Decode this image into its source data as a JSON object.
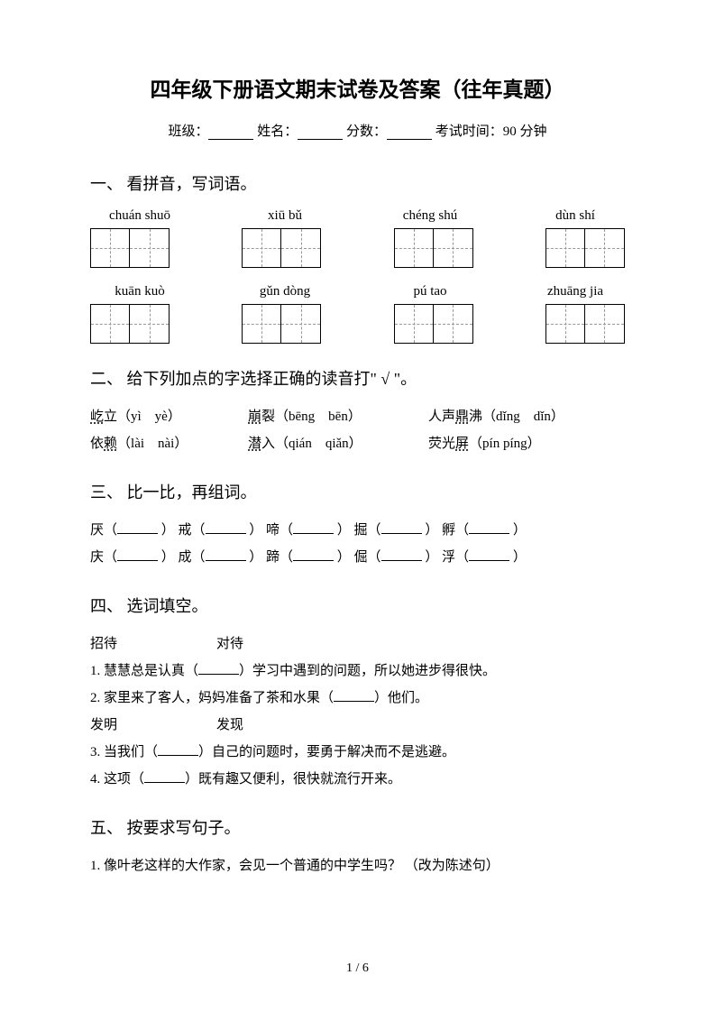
{
  "title": "四年级下册语文期末试卷及答案（往年真题）",
  "info": {
    "class_label": "班级：",
    "name_label": "姓名：",
    "score_label": "分数：",
    "time_label": "考试时间：90 分钟"
  },
  "s1": {
    "heading": "一、 看拼音，写词语。",
    "row1": [
      "chuán shuō",
      "xiū bǔ",
      "chéng shú",
      "dùn shí"
    ],
    "row2": [
      "kuān kuò",
      "gǔn dòng",
      "pú tao",
      "zhuāng jia"
    ]
  },
  "s2": {
    "heading": "二、 给下列加点的字选择正确的读音打\" √ \"。",
    "r1c1a": "屹",
    "r1c1b": "立（yì　yè）",
    "r1c2a": "崩",
    "r1c2b": "裂（bēng　bēn）",
    "r1c3a": "人声",
    "r1c3b": "鼎",
    "r1c3c": "沸（dǐng　dǐn）",
    "r2c1a": "依",
    "r2c1b": "赖",
    "r2c1c": "（lài　nài）",
    "r2c2a": "潜",
    "r2c2b": "入（qián　qiǎn）",
    "r2c3a": "荧光",
    "r2c3b": "屏",
    "r2c3c": "（pín píng）"
  },
  "s3": {
    "heading": "三、 比一比，再组词。",
    "line1": {
      "a": "厌（",
      "b": "） 戒（",
      "c": "） 啼（",
      "d": "） 掘（",
      "e": "） 孵（",
      "f": "）"
    },
    "line2": {
      "a": "庆（",
      "b": "） 成（",
      "c": "） 蹄（",
      "d": "） 倔（",
      "e": "） 浮（",
      "f": "）"
    }
  },
  "s4": {
    "heading": "四、 选词填空。",
    "pair1a": "招待",
    "pair1b": "对待",
    "q1a": "1. 慧慧总是认真（",
    "q1b": "）学习中遇到的问题，所以她进步得很快。",
    "q2a": "2. 家里来了客人，妈妈准备了茶和水果（",
    "q2b": "）他们。",
    "pair2a": "发明",
    "pair2b": "发现",
    "q3a": "3. 当我们（",
    "q3b": "）自己的问题时，要勇于解决而不是逃避。",
    "q4a": "4. 这项（",
    "q4b": "）既有趣又便利，很快就流行开来。"
  },
  "s5": {
    "heading": "五、 按要求写句子。",
    "q1": "1. 像叶老这样的大作家，会见一个普通的中学生吗？ （改为陈述句）"
  },
  "page": "1 / 6",
  "colors": {
    "text": "#000000",
    "bg": "#ffffff",
    "dash": "#999999"
  }
}
